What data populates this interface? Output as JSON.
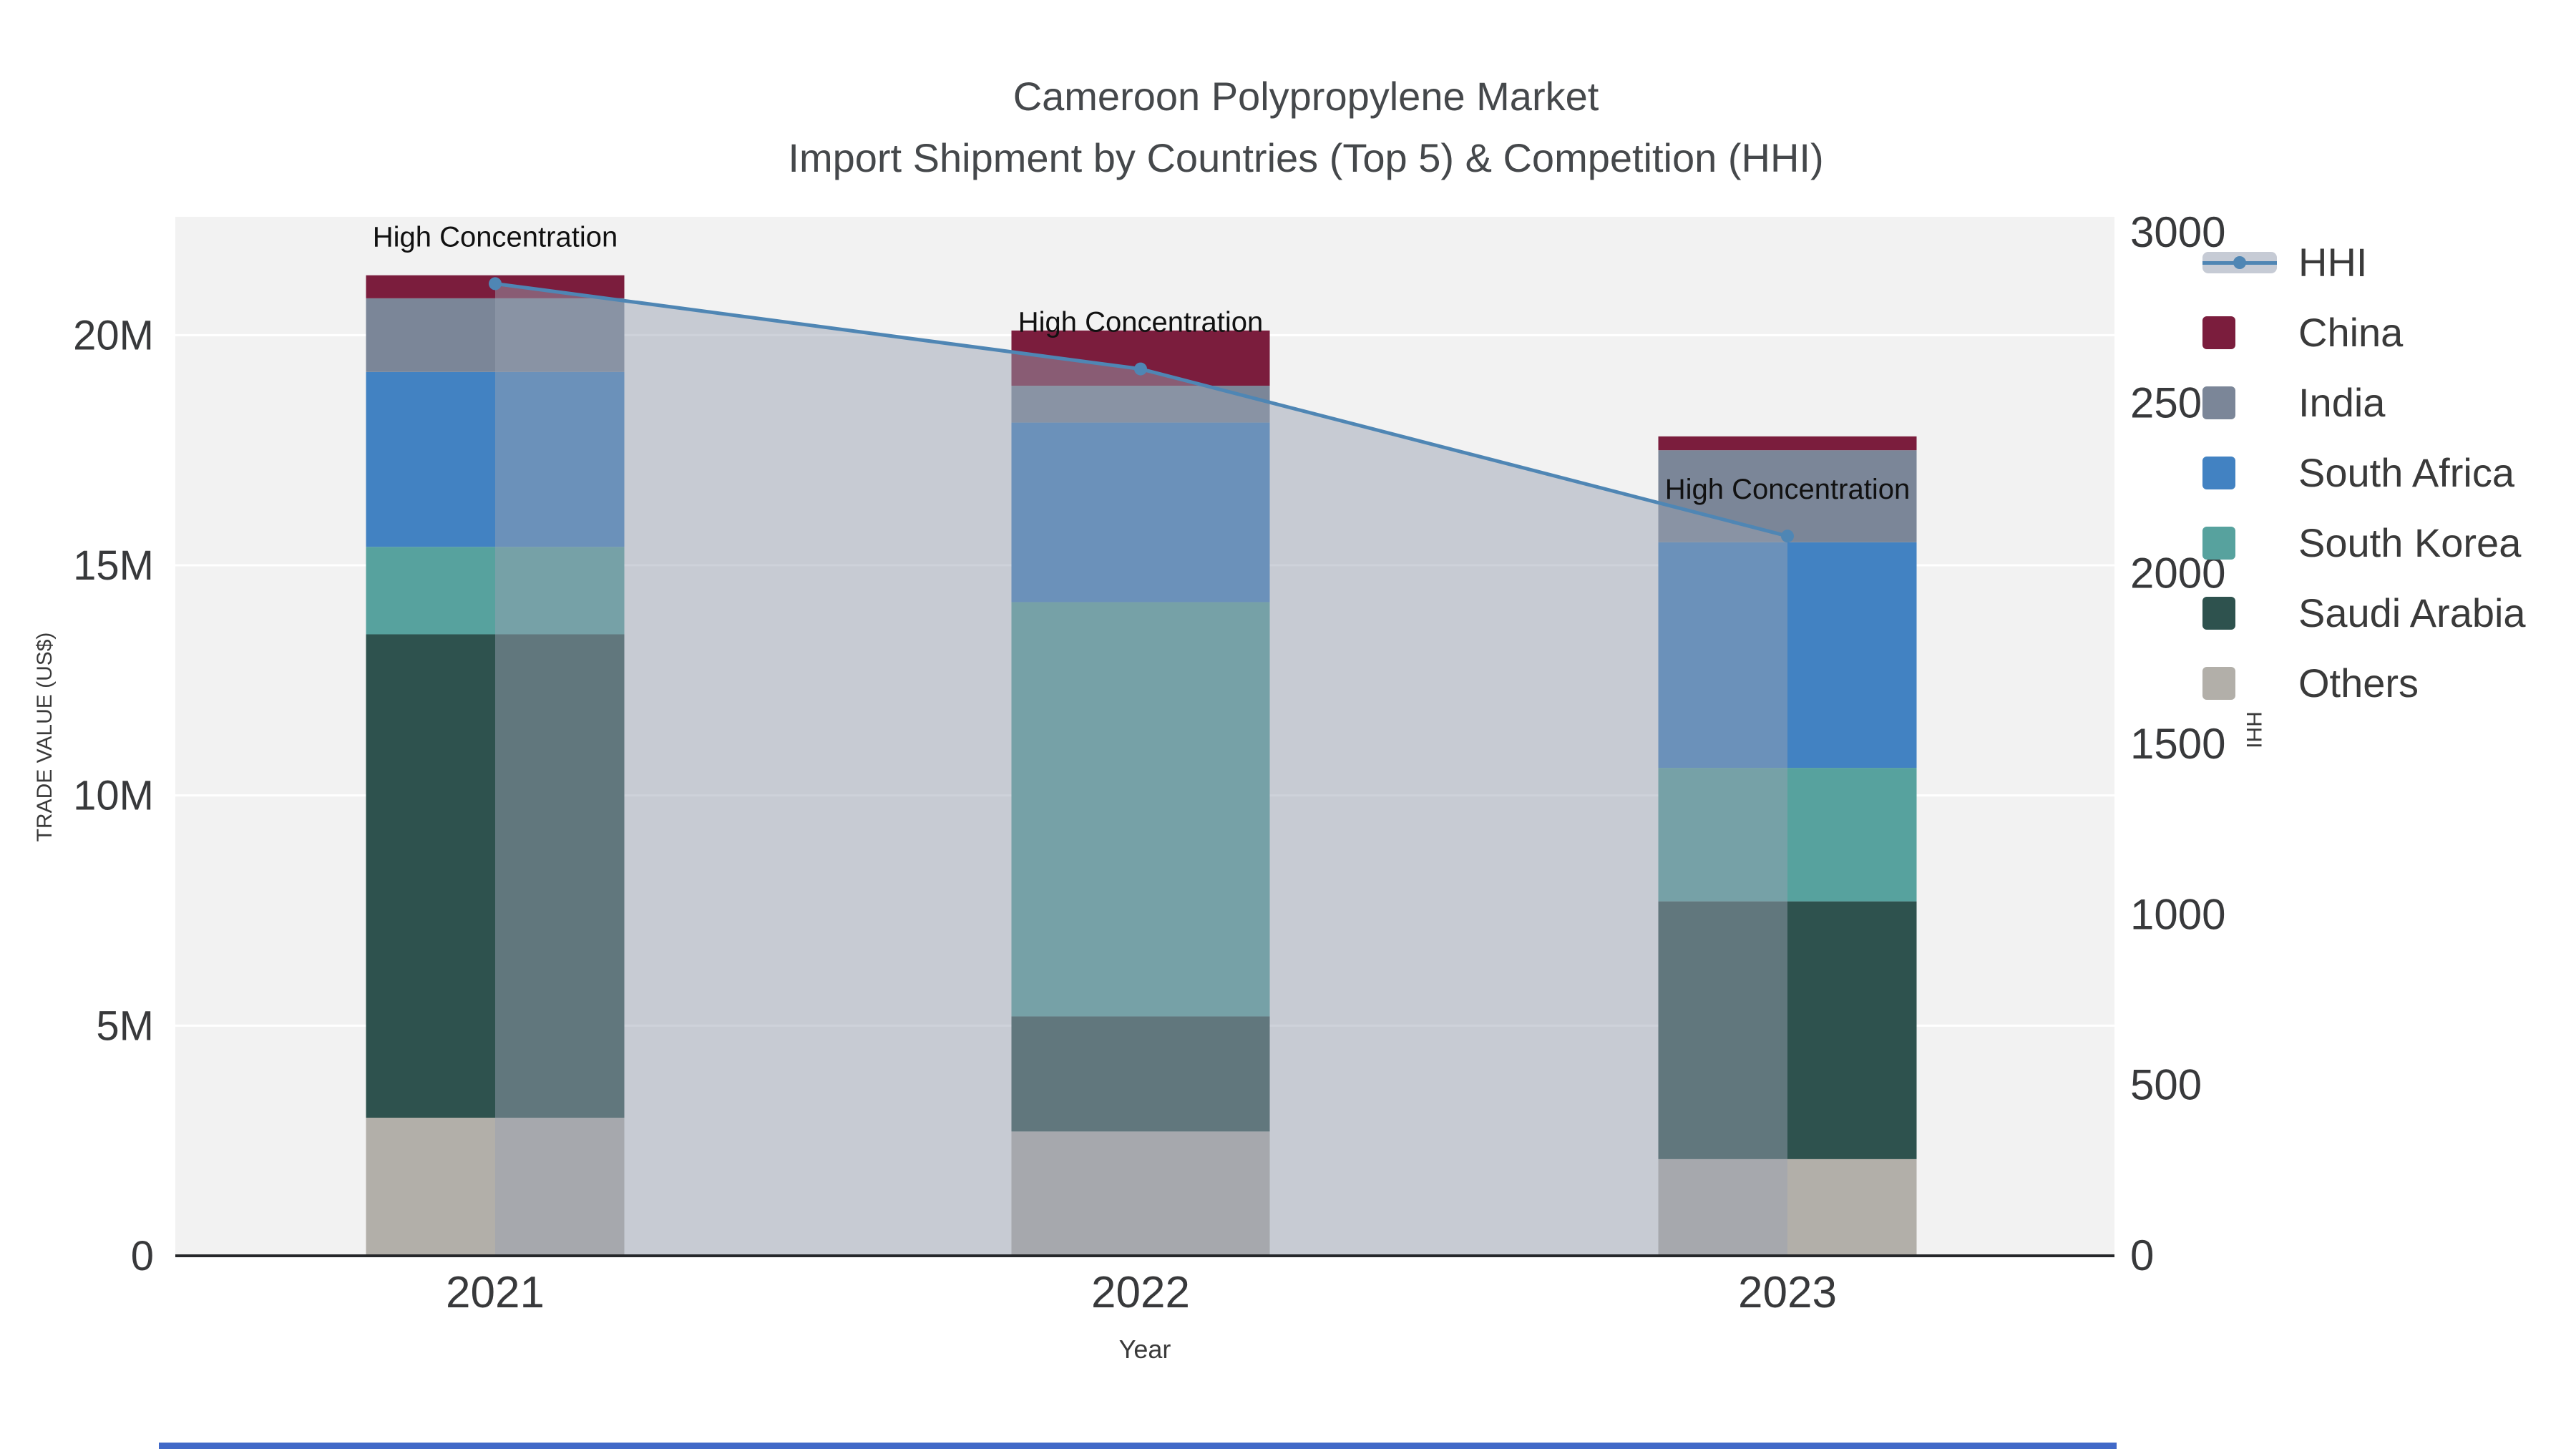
{
  "title": {
    "line1": "Cameroon Polypropylene Market",
    "line2": "Import Shipment by Countries (Top 5) & Competition (HHI)"
  },
  "axes": {
    "x_title": "Year",
    "y_left_title": "TRADE VALUE (US$)",
    "y_right_title": "HHI",
    "x_tick_labels": [
      "2021",
      "2022",
      "2023"
    ],
    "y_left_ticks": [
      {
        "label": "0",
        "value": 0
      },
      {
        "label": "5M",
        "value": 5000000
      },
      {
        "label": "10M",
        "value": 10000000
      },
      {
        "label": "15M",
        "value": 15000000
      },
      {
        "label": "20M",
        "value": 20000000
      }
    ],
    "y_right_ticks": [
      {
        "label": "0",
        "value": 0
      },
      {
        "label": "500",
        "value": 500
      },
      {
        "label": "1000",
        "value": 1000
      },
      {
        "label": "1500",
        "value": 1500
      },
      {
        "label": "2000",
        "value": 2000
      },
      {
        "label": "2500",
        "value": 2500
      },
      {
        "label": "3000",
        "value": 3000
      }
    ]
  },
  "chart_data": {
    "type": "bar",
    "subtype": "stacked-bars-with-hhi-line-and-area",
    "title": "Cameroon Polypropylene Market — Import Shipment by Countries (Top 5) & Competition (HHI)",
    "xlabel": "Year",
    "ylabel_left": "TRADE VALUE (US$)",
    "ylabel_right": "HHI",
    "categories": [
      "2021",
      "2022",
      "2023"
    ],
    "y_left_max": 22570000,
    "y_right_max": 3046,
    "grid": true,
    "plot_background": "#f2f2f2",
    "series": [
      {
        "name": "Others",
        "color": "#b2afa9",
        "values": [
          3000000,
          2700000,
          2100000
        ]
      },
      {
        "name": "Saudi Arabia",
        "color": "#2e524e",
        "values": [
          10500000,
          2500000,
          5600000
        ]
      },
      {
        "name": "South Korea",
        "color": "#57a29e",
        "values": [
          1900000,
          9000000,
          2900000
        ]
      },
      {
        "name": "South Africa",
        "color": "#4282c2",
        "values": [
          3800000,
          3900000,
          4900000
        ]
      },
      {
        "name": "India",
        "color": "#7b8698",
        "values": [
          1600000,
          800000,
          2000000
        ]
      },
      {
        "name": "China",
        "color": "#7b1d3d",
        "values": [
          500000,
          1200000,
          300000
        ]
      }
    ],
    "bar_totals": [
      21300000,
      20100000,
      17800000
    ],
    "line": {
      "name": "HHI",
      "color": "#4f86b4",
      "marker": "circle",
      "values": [
        2850,
        2600,
        2110
      ],
      "area_fill": "rgba(152,160,178,0.48)"
    },
    "annotations": [
      {
        "text": "High Concentration",
        "category": "2021"
      },
      {
        "text": "High Concentration",
        "category": "2022"
      },
      {
        "text": "High Concentration",
        "category": "2023"
      }
    ],
    "legend": {
      "position": "right",
      "items": [
        {
          "label": "HHI",
          "type": "line",
          "color": "#4f86b4"
        },
        {
          "label": "China",
          "type": "square",
          "color": "#7b1d3d"
        },
        {
          "label": "India",
          "type": "square",
          "color": "#7b8698"
        },
        {
          "label": "South Africa",
          "type": "square",
          "color": "#4282c2"
        },
        {
          "label": "South Korea",
          "type": "square",
          "color": "#57a29e"
        },
        {
          "label": "Saudi Arabia",
          "type": "square",
          "color": "#2e524e"
        },
        {
          "label": "Others",
          "type": "square",
          "color": "#b2afa9"
        }
      ]
    }
  }
}
